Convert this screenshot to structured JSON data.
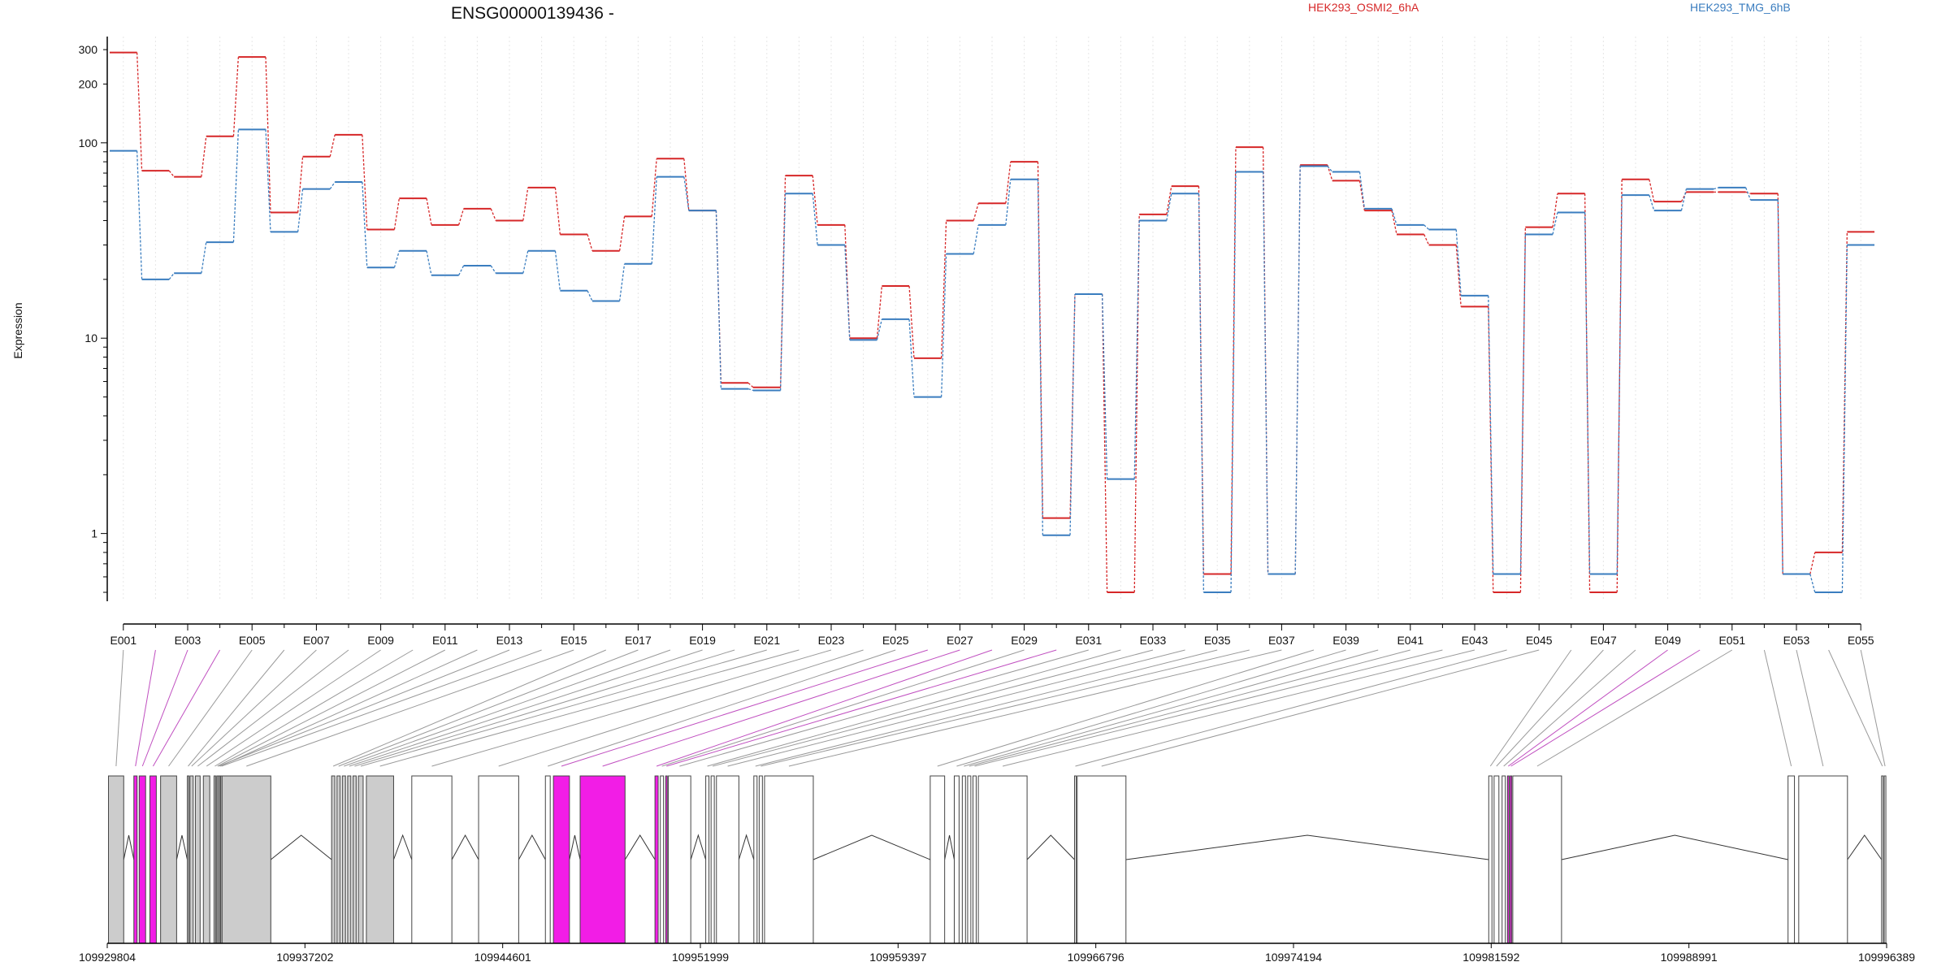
{
  "title": "ENSG00000139436 -",
  "colors": {
    "series_a": "#d62728",
    "series_b": "#3a7dbf",
    "exon_normal": "#cccccc",
    "exon_highlight": "#f21de6",
    "connector_normal": "#9a9a9a",
    "connector_highlight": "#c04fc0",
    "grid": "#e6e6e6"
  },
  "chart_data": {
    "type": "line",
    "title": "ENSG00000139436 -",
    "ylabel": "Expression",
    "xlabel": "",
    "y_scale": "log",
    "ylim": [
      0.45,
      350
    ],
    "y_ticks": [
      1,
      10,
      100,
      200,
      300
    ],
    "grid": true,
    "legend_position": "top",
    "categories": [
      "E001",
      "E002",
      "E003",
      "E004",
      "E005",
      "E006",
      "E007",
      "E008",
      "E009",
      "E010",
      "E011",
      "E012",
      "E013",
      "E014",
      "E015",
      "E016",
      "E017",
      "E018",
      "E019",
      "E020",
      "E021",
      "E022",
      "E023",
      "E024",
      "E025",
      "E026",
      "E027",
      "E028",
      "E029",
      "E030",
      "E031",
      "E032",
      "E033",
      "E034",
      "E035",
      "E036",
      "E037",
      "E038",
      "E039",
      "E040",
      "E041",
      "E042",
      "E043",
      "E044",
      "E045",
      "E046",
      "E047",
      "E048",
      "E049",
      "E050",
      "E051",
      "E052",
      "E053",
      "E054",
      "E055"
    ],
    "series": [
      {
        "name": "HEK293_OSMI2_6hA",
        "values": [
          290,
          72,
          67,
          108,
          275,
          44,
          85,
          110,
          36,
          52,
          38,
          46,
          40,
          59,
          34,
          28,
          42,
          83,
          45,
          5.9,
          5.6,
          68,
          38,
          10,
          18.5,
          7.9,
          40,
          49,
          80,
          1.2,
          16.8,
          0.5,
          43,
          60,
          0.62,
          95,
          0.62,
          77,
          64,
          45,
          34,
          30,
          14.5,
          0.5,
          37,
          55,
          0.5,
          65,
          50,
          56,
          56,
          55,
          0.62,
          0.8,
          35
        ]
      },
      {
        "name": "HEK293_TMG_6hB",
        "values": [
          91,
          20,
          21.5,
          31,
          117,
          35,
          58,
          63,
          23,
          28,
          21,
          23.5,
          21.5,
          28,
          17.5,
          15.5,
          24,
          67,
          45,
          5.5,
          5.4,
          55,
          30,
          9.8,
          12.5,
          5.0,
          27,
          38,
          65,
          0.98,
          16.8,
          1.9,
          40,
          55,
          0.5,
          71,
          0.62,
          76,
          71,
          46,
          38,
          36,
          16.5,
          0.62,
          34,
          44,
          0.62,
          54,
          45,
          58,
          59,
          51,
          0.62,
          0.5,
          30
        ]
      }
    ],
    "x_ticks_shown": [
      "E001",
      "E003",
      "E005",
      "E007",
      "E009",
      "E011",
      "E013",
      "E015",
      "E017",
      "E019",
      "E021",
      "E023",
      "E025",
      "E027",
      "E029",
      "E031",
      "E033",
      "E035",
      "E037",
      "E039",
      "E041",
      "E043",
      "E045",
      "E047",
      "E049",
      "E051",
      "E053",
      "E055"
    ],
    "gene_model": {
      "genomic_range": [
        109929804,
        109996389
      ],
      "genomic_ticks": [
        109929804,
        109937202,
        109944601,
        109951999,
        109959397,
        109966796,
        109974194,
        109981592,
        109988991,
        109996389
      ],
      "highlighted_exons": [
        "E002",
        "E003",
        "E004",
        "E026",
        "E027",
        "E028",
        "E030",
        "E049",
        "E050"
      ],
      "exon_positions": [
        109929850,
        109930800,
        109931000,
        109931400,
        109931800,
        109932800,
        109932900,
        109933100,
        109933400,
        109933800,
        109933900,
        109934000,
        109933950,
        109934050,
        109934100,
        109938200,
        109938400,
        109938600,
        109938800,
        109939000,
        109939200,
        109939500,
        109941200,
        109943700,
        109946200,
        109946500,
        109947500,
        109950300,
        109950500,
        109950700,
        109950800,
        109952200,
        109952400,
        109952600,
        109954000,
        109954200,
        109954400,
        109960600,
        109961500,
        109961800,
        109962000,
        109962200,
        109962400,
        109966000,
        109966100,
        109981500,
        109981700,
        109982000,
        109982200,
        109982300,
        109982400,
        109992700,
        109993100,
        109996200,
        109996300
      ]
    }
  }
}
